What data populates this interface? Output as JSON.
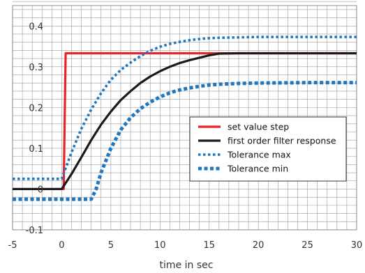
{
  "chart_data": {
    "type": "line",
    "title": "",
    "xlabel": "time in sec",
    "ylabel": "",
    "xlim": [
      -5,
      30
    ],
    "ylim": [
      -0.1,
      0.45
    ],
    "x_ticks": [
      -5,
      0,
      5,
      10,
      15,
      20,
      25,
      30
    ],
    "x_tick_labels": [
      "-5",
      "0",
      "5",
      "10",
      "15",
      "20",
      "25",
      "30"
    ],
    "y_ticks": [
      -0.1,
      0,
      0.1,
      0.2,
      0.3,
      0.4
    ],
    "y_tick_labels": [
      "-0.1",
      "0",
      "0.1",
      "0.2",
      "0.3",
      "0.4"
    ],
    "grid": true,
    "legend_position": "right",
    "series": [
      {
        "name": "set value step",
        "color": "#e8242a",
        "style": "solid",
        "x": [
          -5,
          0.2,
          0.4,
          30
        ],
        "y": [
          0,
          0,
          0.333,
          0.333
        ]
      },
      {
        "name": "first order filter response",
        "color": "#1a1a1a",
        "style": "solid",
        "x": [
          -5,
          0,
          1,
          2,
          3,
          4,
          5,
          6,
          7,
          8,
          9,
          10,
          11,
          12,
          13,
          14,
          15,
          16,
          18,
          20,
          25,
          30
        ],
        "y": [
          0,
          0,
          0.037,
          0.078,
          0.12,
          0.158,
          0.19,
          0.218,
          0.24,
          0.26,
          0.276,
          0.289,
          0.3,
          0.309,
          0.316,
          0.322,
          0.328,
          0.332,
          0.333,
          0.333,
          0.333,
          0.333
        ]
      },
      {
        "name": "Tolerance max",
        "color": "#1f77c0",
        "style": "dotted",
        "x": [
          -5,
          0,
          1,
          2,
          3,
          4,
          5,
          6,
          7,
          8,
          9,
          10,
          11,
          12,
          13,
          14,
          15,
          16,
          18,
          20,
          25,
          30
        ],
        "y": [
          0.025,
          0.025,
          0.09,
          0.148,
          0.195,
          0.235,
          0.268,
          0.292,
          0.31,
          0.326,
          0.339,
          0.349,
          0.356,
          0.361,
          0.365,
          0.368,
          0.37,
          0.371,
          0.372,
          0.373,
          0.373,
          0.373
        ]
      },
      {
        "name": "Tolerance min",
        "color": "#1f77c0",
        "style": "dashed",
        "x": [
          -5,
          3,
          3.5,
          4,
          5,
          6,
          7,
          8,
          9,
          10,
          11,
          12,
          13,
          14,
          15,
          16,
          18,
          20,
          25,
          30
        ],
        "y": [
          -0.025,
          -0.025,
          0,
          0.04,
          0.1,
          0.145,
          0.175,
          0.197,
          0.213,
          0.226,
          0.236,
          0.243,
          0.248,
          0.252,
          0.255,
          0.257,
          0.259,
          0.26,
          0.261,
          0.261
        ]
      }
    ]
  }
}
